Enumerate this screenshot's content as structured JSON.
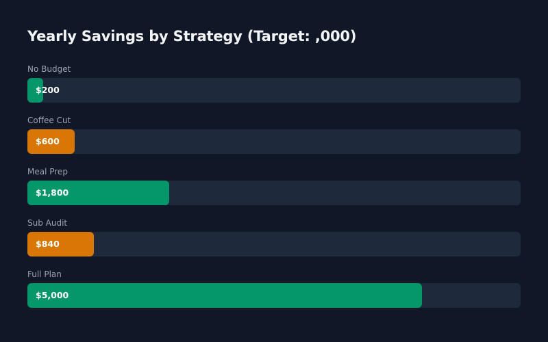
{
  "chart_data": {
    "type": "bar",
    "orientation": "horizontal",
    "title": "Yearly Savings by Strategy (Target: ,000)",
    "xlabel": "",
    "ylabel": "",
    "xlim": [
      0,
      6250
    ],
    "grid": false,
    "categories": [
      "No Budget",
      "Coffee Cut",
      "Meal Prep",
      "Sub Audit",
      "Full Plan"
    ],
    "values": [
      200,
      600,
      1800,
      840,
      5000
    ],
    "value_labels": [
      "$200",
      "$600",
      "$1,800",
      "$840",
      "$5,000"
    ],
    "colors": [
      "#059669",
      "#d97706",
      "#059669",
      "#d97706",
      "#059669"
    ]
  },
  "colors": {
    "background": "#101828",
    "track": "#1e293b",
    "title": "#f3f4f6",
    "label": "#9ca3af",
    "value_text": "#ffffff"
  }
}
